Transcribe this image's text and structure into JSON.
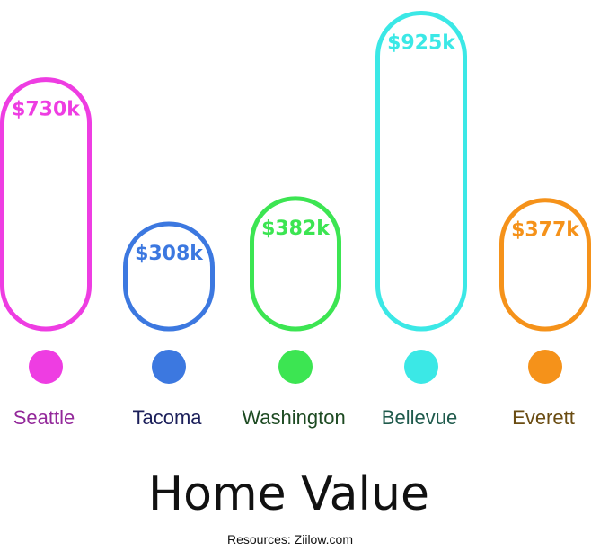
{
  "chart_data": {
    "type": "bar",
    "categories": [
      "Seattle",
      "Tacoma",
      "Washington",
      "Bellevue",
      "Everett"
    ],
    "values": [
      730,
      308,
      382,
      925,
      377
    ],
    "value_labels": [
      "$730k",
      "$308k",
      "$382k",
      "$925k",
      "$377k"
    ],
    "unit": "$k",
    "title": "Home Value",
    "source": "Resources: Ziilow.com",
    "xlabel": "",
    "ylabel": "",
    "ylim": [
      0,
      950
    ],
    "grid": false,
    "legend": "none",
    "colors": [
      "#ee3de2",
      "#3c78e0",
      "#3ce552",
      "#3be8e6",
      "#f5921a"
    ],
    "label_colors": [
      "#93289a",
      "#1b1f5a",
      "#1d4a22",
      "#1f5a4c",
      "#6a4c12"
    ]
  }
}
